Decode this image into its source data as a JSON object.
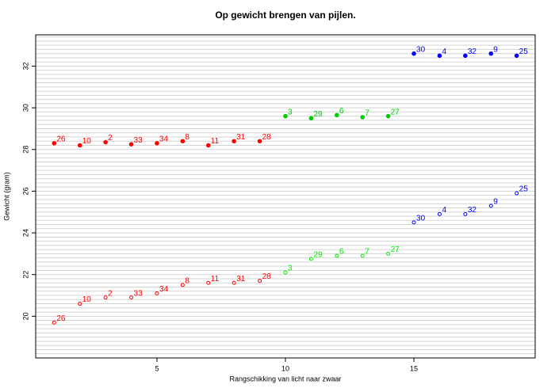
{
  "chart_data": {
    "type": "scatter",
    "title": "Op gewicht brengen van pijlen.",
    "x_label": "Rangschikking van licht naar zwaar",
    "y_label": "Gewicht (gram)",
    "xlim": [
      0.28,
      19.72
    ],
    "ylim": [
      18,
      33.5
    ],
    "xticks": [
      5,
      10,
      15
    ],
    "yticks": [
      20,
      22,
      24,
      26,
      28,
      30,
      32
    ],
    "grid": true,
    "grid_step": 0.2,
    "series": [
      {
        "color": "#ff0000",
        "filled": true,
        "x": [
          1,
          2,
          3,
          4,
          5,
          6,
          7,
          8,
          9
        ],
        "values": [
          28.3,
          28.2,
          28.35,
          28.25,
          28.3,
          28.4,
          28.2,
          28.4,
          28.4
        ],
        "labels": [
          "26",
          "10",
          "2",
          "33",
          "34",
          "8",
          "11",
          "31",
          "28"
        ]
      },
      {
        "color": "#00cc00",
        "filled": true,
        "x": [
          10,
          11,
          12,
          13,
          14
        ],
        "values": [
          29.6,
          29.5,
          29.65,
          29.55,
          29.6
        ],
        "labels": [
          "3",
          "29",
          "6",
          "7",
          "27"
        ]
      },
      {
        "color": "#0000ff",
        "filled": true,
        "x": [
          15,
          16,
          17,
          18,
          19
        ],
        "values": [
          32.6,
          32.5,
          32.5,
          32.6,
          32.5
        ],
        "labels": [
          "30",
          "4",
          "32",
          "9",
          "25"
        ]
      },
      {
        "color": "#ff0000",
        "filled": false,
        "x": [
          1,
          2,
          3,
          4,
          5,
          6,
          7,
          8,
          9
        ],
        "values": [
          19.7,
          20.6,
          20.9,
          20.9,
          21.1,
          21.5,
          21.6,
          21.6,
          21.7
        ],
        "labels": [
          "26",
          "10",
          "2",
          "33",
          "34",
          "8",
          "11",
          "31",
          "28"
        ]
      },
      {
        "color": "#00ee00",
        "filled": false,
        "x": [
          10,
          11,
          12,
          13,
          14
        ],
        "values": [
          22.1,
          22.75,
          22.9,
          22.9,
          23.0
        ],
        "labels": [
          "3",
          "29",
          "6",
          "7",
          "27"
        ]
      },
      {
        "color": "#0000ff",
        "filled": false,
        "x": [
          15,
          16,
          17,
          18,
          19
        ],
        "values": [
          24.5,
          24.9,
          24.9,
          25.3,
          25.9
        ],
        "labels": [
          "30",
          "4",
          "32",
          "9",
          "25"
        ]
      }
    ]
  }
}
